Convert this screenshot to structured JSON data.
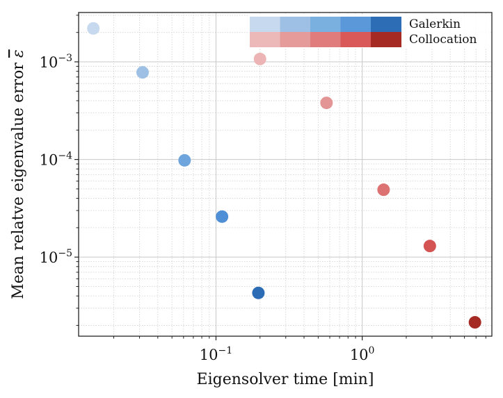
{
  "chart_data": {
    "type": "scatter",
    "xlabel": "Eigensolver time [min]",
    "ylabel_main": "Mean relatve eigenvalue error",
    "ylabel_symbol": "ε",
    "xscale": "log",
    "yscale": "log",
    "xlim": [
      0.0115,
      7.7
    ],
    "ylim": [
      1.55e-06,
      0.0032
    ],
    "x_ticks": [
      {
        "value": 0.1,
        "mantissa": "10",
        "exp": "−1"
      },
      {
        "value": 1,
        "mantissa": "10",
        "exp": "0"
      }
    ],
    "y_ticks": [
      {
        "value": 1e-05,
        "mantissa": "10",
        "exp": "−5"
      },
      {
        "value": 0.0001,
        "mantissa": "10",
        "exp": "−4"
      },
      {
        "value": 0.001,
        "mantissa": "10",
        "exp": "−3"
      }
    ],
    "grid": true,
    "legend_position": "top-right",
    "series": [
      {
        "name": "Galerkin",
        "points": [
          {
            "x": 0.0145,
            "y": 0.0022,
            "color": "#c6d9ef"
          },
          {
            "x": 0.0315,
            "y": 0.00078,
            "color": "#9dc0e4"
          },
          {
            "x": 0.061,
            "y": 9.8e-05,
            "color": "#6ea5dd"
          },
          {
            "x": 0.11,
            "y": 2.6e-05,
            "color": "#4e8fd6"
          },
          {
            "x": 0.195,
            "y": 4.3e-06,
            "color": "#2c6cb5"
          }
        ],
        "legend_swatches": [
          "#c6d9ef",
          "#9dc0e4",
          "#7ab0e0",
          "#5b98d9",
          "#2d6db6"
        ]
      },
      {
        "name": "Collocation",
        "points": [
          {
            "x": 0.2,
            "y": 0.00107,
            "color": "#ecb4b4"
          },
          {
            "x": 0.57,
            "y": 0.00038,
            "color": "#e39595"
          },
          {
            "x": 1.4,
            "y": 4.9e-05,
            "color": "#dc7272"
          },
          {
            "x": 2.9,
            "y": 1.3e-05,
            "color": "#d45353"
          },
          {
            "x": 5.9,
            "y": 2.15e-06,
            "color": "#a62a24"
          }
        ],
        "legend_swatches": [
          "#ecb8b8",
          "#e69b9b",
          "#e07c7c",
          "#d95858",
          "#a62a24"
        ]
      }
    ]
  }
}
